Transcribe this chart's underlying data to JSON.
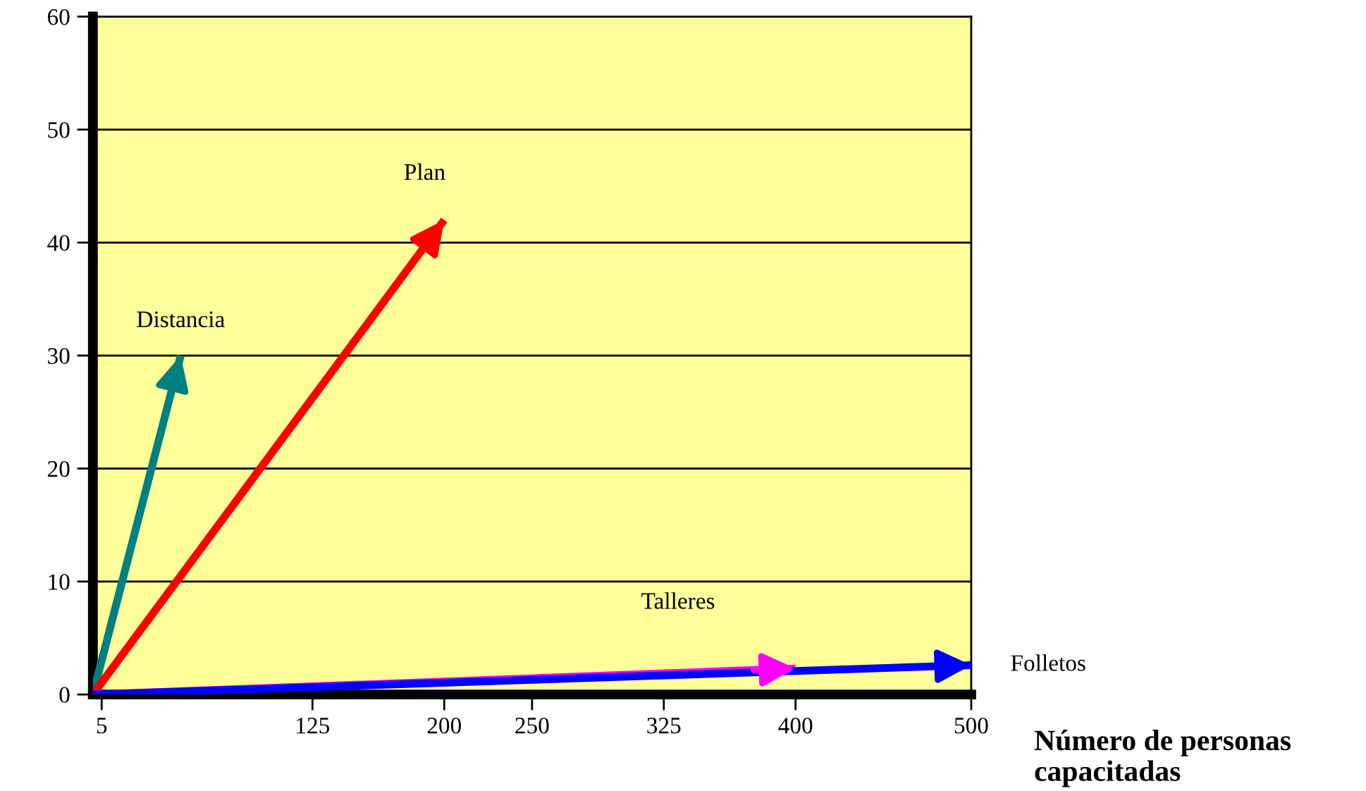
{
  "chart_data": {
    "type": "line",
    "xlabel": "Número de personas capacitadas",
    "series": [
      {
        "name": "Distancia",
        "color": "#008080",
        "x": [
          0,
          50
        ],
        "values": [
          0,
          30
        ]
      },
      {
        "name": "Plan",
        "color": "#ff0000",
        "x": [
          0,
          200
        ],
        "values": [
          0,
          42
        ]
      },
      {
        "name": "Talleres",
        "color": "#ff00ff",
        "x": [
          0,
          400
        ],
        "values": [
          0,
          2.3
        ]
      },
      {
        "name": "Folletos",
        "color": "#0000ff",
        "x": [
          0,
          500
        ],
        "values": [
          0,
          2.6
        ]
      }
    ],
    "xlim": [
      0,
      500
    ],
    "ylim": [
      0,
      60
    ],
    "xticks": [
      5,
      125,
      200,
      250,
      325,
      400,
      500
    ],
    "yticks": [
      0,
      10,
      20,
      30,
      40,
      50,
      60
    ],
    "grid": "y",
    "marker": "none",
    "line_style": "solid"
  }
}
